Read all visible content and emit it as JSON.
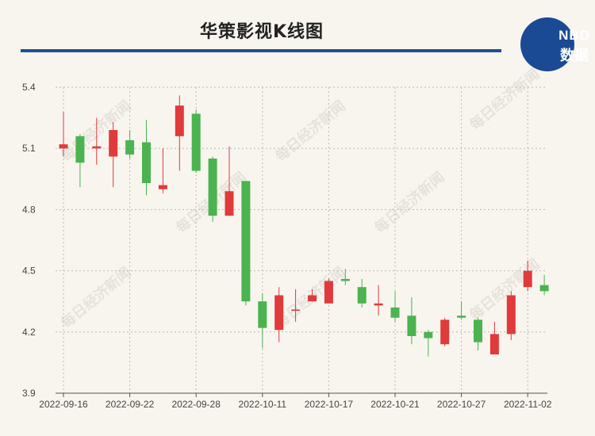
{
  "title": "华策影视K线图",
  "logo": {
    "line1": "NBD",
    "line2": "数据"
  },
  "watermark": "每日经济新闻",
  "colors": {
    "up": "#e03a3a",
    "down": "#4bb34f",
    "title_rule": "#1e4f96",
    "logo_bg": "#1b4a95",
    "grid": "#b9b9b9"
  },
  "chart_data": {
    "type": "candlestick",
    "title": "华策影视K线图",
    "ylim": [
      3.9,
      5.4
    ],
    "yticks": [
      "3.9",
      "4.2",
      "4.5",
      "4.8",
      "5.1",
      "5.4"
    ],
    "xtick_labels": [
      "2022-09-16",
      "2022-09-22",
      "2022-09-28",
      "2022-10-11",
      "2022-10-17",
      "2022-10-21",
      "2022-10-27",
      "2022-11-02"
    ],
    "grid": true,
    "candles": [
      {
        "date": "2022-09-16",
        "open": 5.1,
        "close": 5.12,
        "high": 5.28,
        "low": 5.06
      },
      {
        "date": "2022-09-19",
        "open": 5.16,
        "close": 5.03,
        "high": 5.17,
        "low": 4.91
      },
      {
        "date": "2022-09-20",
        "open": 5.1,
        "close": 5.11,
        "high": 5.25,
        "low": 5.02
      },
      {
        "date": "2022-09-21",
        "open": 5.06,
        "close": 5.19,
        "high": 5.23,
        "low": 4.91
      },
      {
        "date": "2022-09-22",
        "open": 5.14,
        "close": 5.07,
        "high": 5.19,
        "low": 5.05
      },
      {
        "date": "2022-09-23",
        "open": 5.13,
        "close": 4.93,
        "high": 5.24,
        "low": 4.87
      },
      {
        "date": "2022-09-26",
        "open": 4.9,
        "close": 4.92,
        "high": 5.1,
        "low": 4.88
      },
      {
        "date": "2022-09-27",
        "open": 5.16,
        "close": 5.31,
        "high": 5.36,
        "low": 4.99
      },
      {
        "date": "2022-09-28",
        "open": 5.27,
        "close": 4.99,
        "high": 5.29,
        "low": 4.98
      },
      {
        "date": "2022-09-29",
        "open": 5.05,
        "close": 4.77,
        "high": 5.06,
        "low": 4.74
      },
      {
        "date": "2022-09-30",
        "open": 4.77,
        "close": 4.89,
        "high": 5.11,
        "low": 4.77
      },
      {
        "date": "2022-10-10",
        "open": 4.94,
        "close": 4.35,
        "high": 4.94,
        "low": 4.33
      },
      {
        "date": "2022-10-11",
        "open": 4.35,
        "close": 4.22,
        "high": 4.39,
        "low": 4.12
      },
      {
        "date": "2022-10-12",
        "open": 4.21,
        "close": 4.38,
        "high": 4.42,
        "low": 4.15
      },
      {
        "date": "2022-10-13",
        "open": 4.31,
        "close": 4.31,
        "high": 4.41,
        "low": 4.25
      },
      {
        "date": "2022-10-14",
        "open": 4.35,
        "close": 4.38,
        "high": 4.41,
        "low": 4.35
      },
      {
        "date": "2022-10-17",
        "open": 4.34,
        "close": 4.45,
        "high": 4.46,
        "low": 4.34
      },
      {
        "date": "2022-10-18",
        "open": 4.46,
        "close": 4.45,
        "high": 4.51,
        "low": 4.43
      },
      {
        "date": "2022-10-19",
        "open": 4.42,
        "close": 4.34,
        "high": 4.46,
        "low": 4.32
      },
      {
        "date": "2022-10-20",
        "open": 4.33,
        "close": 4.34,
        "high": 4.43,
        "low": 4.28
      },
      {
        "date": "2022-10-21",
        "open": 4.32,
        "close": 4.27,
        "high": 4.4,
        "low": 4.25
      },
      {
        "date": "2022-10-24",
        "open": 4.28,
        "close": 4.18,
        "high": 4.37,
        "low": 4.14
      },
      {
        "date": "2022-10-25",
        "open": 4.2,
        "close": 4.17,
        "high": 4.21,
        "low": 4.08
      },
      {
        "date": "2022-10-26",
        "open": 4.14,
        "close": 4.26,
        "high": 4.27,
        "low": 4.13
      },
      {
        "date": "2022-10-27",
        "open": 4.28,
        "close": 4.27,
        "high": 4.35,
        "low": 4.26
      },
      {
        "date": "2022-10-28",
        "open": 4.26,
        "close": 4.15,
        "high": 4.27,
        "low": 4.11
      },
      {
        "date": "2022-10-31",
        "open": 4.09,
        "close": 4.19,
        "high": 4.25,
        "low": 4.09
      },
      {
        "date": "2022-11-01",
        "open": 4.19,
        "close": 4.38,
        "high": 4.4,
        "low": 4.16
      },
      {
        "date": "2022-11-02",
        "open": 4.42,
        "close": 4.5,
        "high": 4.55,
        "low": 4.4
      },
      {
        "date": "2022-11-03",
        "open": 4.43,
        "close": 4.4,
        "high": 4.48,
        "low": 4.38
      }
    ]
  }
}
